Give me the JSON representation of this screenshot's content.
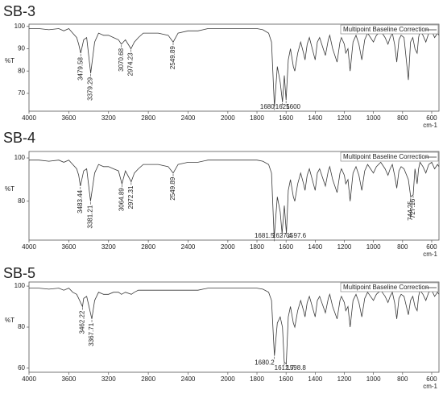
{
  "chart_data": [
    {
      "type": "line",
      "title": "SB-3",
      "y_label": "%T",
      "x_label": "cm-1",
      "legend": "top-right",
      "grid": false,
      "xlim": [
        4000,
        550
      ],
      "xbreak": 2000,
      "xticks": [
        4000,
        3600,
        3200,
        2800,
        2400,
        2000,
        1800,
        1600,
        1400,
        1200,
        1000,
        800,
        600
      ],
      "ylim": [
        62,
        101
      ],
      "yticks": [
        70,
        80,
        90,
        100
      ],
      "peaks": [
        3479.58,
        3379.29,
        3070.68,
        2974.23,
        2549.89,
        1680,
        1625,
        1600
      ],
      "x": [
        4000,
        3900,
        3800,
        3700,
        3650,
        3600,
        3560,
        3520,
        3500,
        3479.58,
        3450,
        3420,
        3379.29,
        3340,
        3300,
        3250,
        3200,
        3150,
        3100,
        3070.68,
        3030,
        2974.23,
        2940,
        2900,
        2850,
        2800,
        2700,
        2600,
        2549.89,
        2500,
        2400,
        2300,
        2200,
        2100,
        2000,
        1900,
        1800,
        1760,
        1720,
        1700,
        1680,
        1660,
        1640,
        1625,
        1612,
        1600,
        1585,
        1570,
        1550,
        1540,
        1520,
        1500,
        1480,
        1470,
        1455,
        1440,
        1420,
        1400,
        1385,
        1370,
        1350,
        1330,
        1310,
        1300,
        1280,
        1250,
        1230,
        1220,
        1200,
        1190,
        1175,
        1160,
        1140,
        1120,
        1100,
        1080,
        1060,
        1040,
        1020,
        1000,
        980,
        950,
        920,
        900,
        885,
        870,
        855,
        840,
        825,
        810,
        790,
        760,
        745,
        730,
        715,
        700,
        690,
        680,
        660,
        640,
        620,
        600,
        580,
        560,
        550
      ],
      "series": [
        {
          "name": "Multipoint Baseline Correction",
          "color": "#3a3a3a",
          "values": [
            99,
            99,
            98.5,
            99,
            98,
            99,
            97,
            95,
            92,
            88,
            94,
            95,
            79,
            93,
            97,
            96,
            96,
            95,
            94,
            92,
            94,
            90,
            93,
            95,
            97,
            97,
            97,
            96,
            93,
            97,
            98,
            98,
            99,
            99,
            99,
            99,
            99,
            98.5,
            97,
            93,
            64,
            82,
            75,
            66,
            78,
            67,
            85,
            90,
            82,
            80,
            88,
            93,
            88,
            85,
            92,
            95,
            90,
            85,
            93,
            95,
            91,
            87,
            94,
            96,
            90,
            84,
            93,
            95,
            92,
            88,
            90,
            80,
            93,
            96,
            92,
            85,
            94,
            97,
            95,
            93,
            96,
            98,
            95,
            92,
            95,
            97,
            92,
            84,
            94,
            96,
            95,
            76,
            93,
            95,
            90,
            88,
            95,
            98,
            96,
            93,
            97,
            98,
            95,
            97,
            96
          ]
        }
      ]
    },
    {
      "type": "line",
      "title": "SB-4",
      "y_label": "%T",
      "x_label": "cm-1",
      "legend": "top-right",
      "grid": false,
      "xlim": [
        4000,
        550
      ],
      "xbreak": 2000,
      "xticks": [
        4000,
        3600,
        3200,
        2800,
        2400,
        2000,
        1800,
        1600,
        1400,
        1200,
        1000,
        800,
        600
      ],
      "ylim": [
        62,
        103
      ],
      "yticks": [
        80,
        100
      ],
      "peaks": [
        3483.44,
        3381.21,
        3064.89,
        2972.31,
        2549.89,
        1681.5,
        1627.4,
        1597.6,
        744.25,
        727.16
      ],
      "x": [
        4000,
        3900,
        3800,
        3700,
        3650,
        3600,
        3560,
        3520,
        3500,
        3483.44,
        3450,
        3420,
        3381.21,
        3340,
        3300,
        3250,
        3200,
        3150,
        3100,
        3064.89,
        3030,
        2972.31,
        2940,
        2900,
        2850,
        2800,
        2700,
        2600,
        2549.89,
        2500,
        2400,
        2300,
        2200,
        2100,
        2000,
        1900,
        1800,
        1760,
        1720,
        1700,
        1681.5,
        1660,
        1640,
        1627.4,
        1612,
        1597.6,
        1585,
        1570,
        1550,
        1540,
        1520,
        1500,
        1480,
        1470,
        1455,
        1440,
        1420,
        1400,
        1385,
        1370,
        1350,
        1330,
        1310,
        1300,
        1280,
        1250,
        1230,
        1220,
        1200,
        1190,
        1175,
        1160,
        1140,
        1120,
        1100,
        1080,
        1060,
        1040,
        1020,
        1000,
        980,
        950,
        920,
        900,
        885,
        870,
        855,
        840,
        825,
        810,
        790,
        760,
        744.25,
        727.16,
        715,
        700,
        690,
        680,
        660,
        640,
        620,
        600,
        580,
        560,
        550
      ],
      "series": [
        {
          "name": "Multipoint Baseline Correction",
          "color": "#3a3a3a",
          "values": [
            99,
            99,
            98.5,
            99,
            98,
            99,
            97,
            95,
            92,
            87,
            94,
            95,
            80,
            93,
            97,
            96,
            96,
            95,
            94,
            88,
            94,
            89,
            93,
            95,
            97,
            97,
            97,
            96,
            93,
            97,
            98,
            98,
            99,
            99,
            99,
            99,
            99,
            98.5,
            97,
            93,
            63,
            82,
            75,
            65,
            78,
            65,
            85,
            90,
            82,
            80,
            88,
            93,
            88,
            85,
            92,
            95,
            90,
            85,
            93,
            95,
            91,
            87,
            94,
            96,
            90,
            84,
            93,
            95,
            92,
            88,
            90,
            80,
            93,
            96,
            92,
            85,
            94,
            97,
            95,
            93,
            96,
            98,
            95,
            92,
            95,
            97,
            92,
            86,
            94,
            96,
            95,
            90,
            82,
            83,
            95,
            88,
            95,
            98,
            96,
            93,
            97,
            98,
            95,
            97,
            96
          ]
        }
      ]
    },
    {
      "type": "line",
      "title": "SB-5",
      "y_label": "%T",
      "x_label": "cm-1",
      "legend": "top-right",
      "grid": false,
      "xlim": [
        4000,
        550
      ],
      "xbreak": 2000,
      "xticks": [
        4000,
        3600,
        3200,
        2800,
        2400,
        2000,
        1800,
        1600,
        1400,
        1200,
        1000,
        800,
        600
      ],
      "ylim": [
        58,
        102
      ],
      "yticks": [
        60,
        80,
        100
      ],
      "peaks": [
        3462.22,
        3367.71,
        1680.2,
        1612.7,
        1598.8
      ],
      "x": [
        4000,
        3900,
        3800,
        3700,
        3650,
        3600,
        3560,
        3520,
        3500,
        3462.22,
        3450,
        3420,
        3367.71,
        3340,
        3300,
        3250,
        3200,
        3150,
        3100,
        3070,
        3030,
        2970,
        2940,
        2900,
        2850,
        2800,
        2700,
        2600,
        2550,
        2500,
        2400,
        2300,
        2200,
        2100,
        2000,
        1900,
        1800,
        1760,
        1720,
        1700,
        1680.2,
        1660,
        1640,
        1625,
        1612.7,
        1598.8,
        1585,
        1570,
        1550,
        1540,
        1520,
        1500,
        1480,
        1470,
        1455,
        1440,
        1420,
        1400,
        1385,
        1370,
        1350,
        1330,
        1310,
        1300,
        1280,
        1250,
        1230,
        1220,
        1200,
        1190,
        1175,
        1160,
        1140,
        1120,
        1100,
        1080,
        1060,
        1040,
        1020,
        1000,
        980,
        950,
        920,
        900,
        885,
        870,
        855,
        840,
        825,
        810,
        790,
        760,
        745,
        730,
        715,
        700,
        690,
        680,
        660,
        640,
        620,
        600,
        580,
        560,
        550
      ],
      "series": [
        {
          "name": "Multipoint Baseline Correction",
          "color": "#3a3a3a",
          "values": [
            99,
            99,
            98.5,
            99,
            98,
            99,
            97,
            96,
            94,
            90,
            94,
            95,
            84,
            93,
            97,
            96,
            96,
            97,
            97,
            96,
            97,
            96,
            97,
            98,
            98,
            98,
            98,
            98,
            98,
            98,
            98,
            98,
            99,
            99,
            99,
            99,
            99,
            98.5,
            97,
            93,
            66,
            82,
            85,
            80,
            63,
            62,
            85,
            90,
            82,
            80,
            88,
            93,
            88,
            85,
            92,
            95,
            90,
            85,
            93,
            95,
            91,
            87,
            94,
            96,
            90,
            84,
            93,
            95,
            92,
            88,
            90,
            80,
            93,
            96,
            92,
            85,
            94,
            97,
            95,
            93,
            96,
            98,
            95,
            92,
            95,
            97,
            92,
            84,
            94,
            96,
            95,
            86,
            93,
            95,
            90,
            88,
            95,
            98,
            96,
            93,
            97,
            98,
            95,
            97,
            96
          ]
        }
      ]
    }
  ]
}
